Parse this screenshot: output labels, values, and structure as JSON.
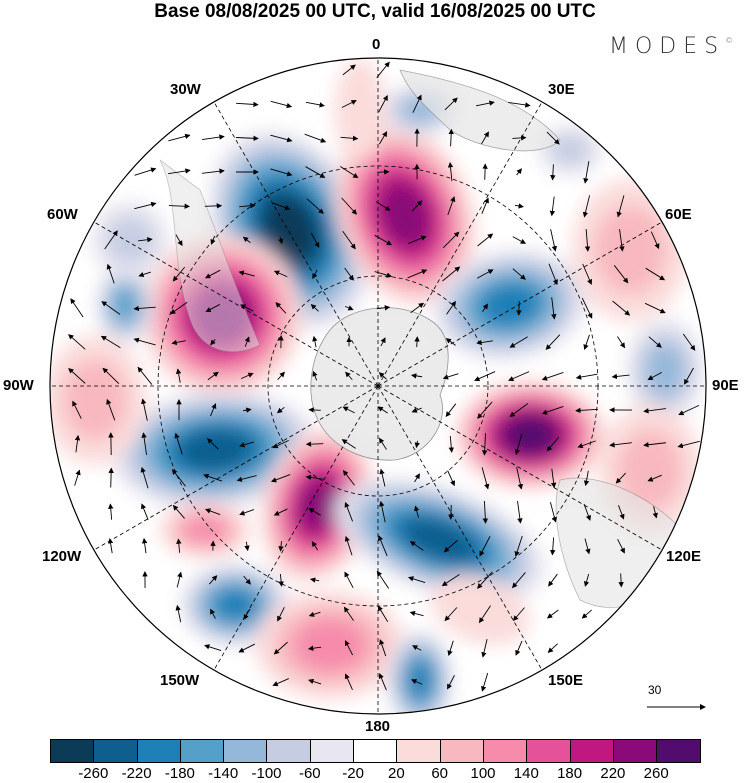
{
  "title": "Base 08/08/2025 00 UTC, valid 16/08/2025 00 UTC",
  "logo": {
    "text": "MODES",
    "mark": "©"
  },
  "longitude_labels": {
    "lon_0": "0",
    "lon_30e": "30E",
    "lon_60e": "60E",
    "lon_90e": "90E",
    "lon_120e": "120E",
    "lon_150e": "150E",
    "lon_180": "180",
    "lon_150w": "150W",
    "lon_120w": "120W",
    "lon_90w": "90W",
    "lon_60w": "60W",
    "lon_30w": "30W"
  },
  "reference_vector": {
    "label": "30"
  },
  "colorbar": {
    "colors": [
      "#0c3b58",
      "#0e5e8f",
      "#1f7fb7",
      "#55a0c9",
      "#94b8da",
      "#c6cde3",
      "#e8e6f0",
      "#ffffff",
      "#fbdcdb",
      "#f8b8bf",
      "#f68bab",
      "#e6519c",
      "#c01880",
      "#890a78",
      "#520c6e"
    ],
    "ticks": [
      "-260",
      "-220",
      "-180",
      "-140",
      "-100",
      "-60",
      "-20",
      "20",
      "60",
      "100",
      "140",
      "180",
      "220",
      "260"
    ]
  }
}
